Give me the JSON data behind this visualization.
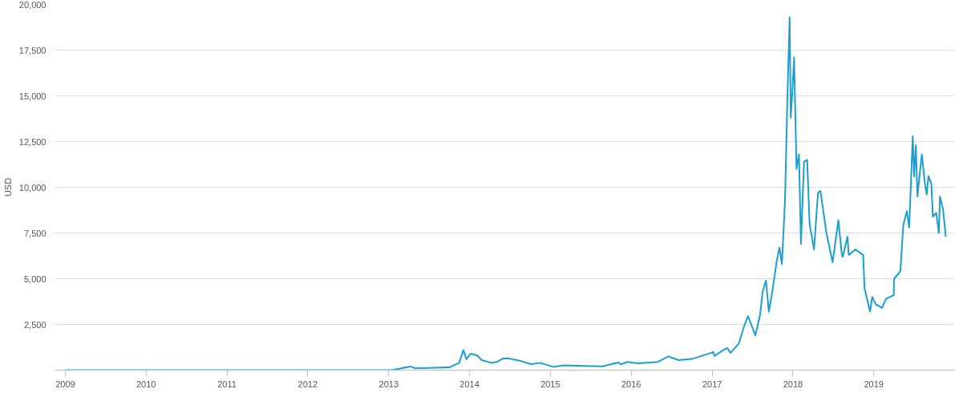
{
  "chart_data": {
    "type": "line",
    "ylabel": "USD",
    "grid": "y",
    "marker": "none",
    "line_style": "solid",
    "xlim": [
      "2008-11-15",
      "2020-01-01"
    ],
    "xticks": [
      "2009",
      "2010",
      "2011",
      "2012",
      "2013",
      "2014",
      "2015",
      "2016",
      "2017",
      "2018",
      "2019"
    ],
    "ylim": [
      0,
      20000
    ],
    "yticks": [
      {
        "value": 0,
        "label": null
      },
      {
        "value": 2500,
        "label": "2,500"
      },
      {
        "value": 5000,
        "label": "5,000"
      },
      {
        "value": 7500,
        "label": "7,500"
      },
      {
        "value": 10000,
        "label": "10,000"
      },
      {
        "value": 12500,
        "label": "12,500"
      },
      {
        "value": 15000,
        "label": "15,000"
      },
      {
        "value": 17500,
        "label": "17,500"
      },
      {
        "value": 20000,
        "label": "20,000"
      }
    ],
    "series": [
      {
        "color": "#1a9fd0",
        "x": [
          "2009-01-03",
          "2010-07-15",
          "2011-06-08",
          "2012-01-15",
          "2013-01-15",
          "2013-04-10",
          "2013-05-01",
          "2013-10-01",
          "2013-11-15",
          "2013-12-04",
          "2013-12-18",
          "2014-01-05",
          "2014-02-05",
          "2014-02-25",
          "2014-04-10",
          "2014-05-05",
          "2014-06-03",
          "2014-07-05",
          "2014-08-20",
          "2014-10-05",
          "2014-11-15",
          "2015-01-14",
          "2015-03-01",
          "2015-06-01",
          "2015-08-25",
          "2015-11-04",
          "2015-11-15",
          "2015-12-15",
          "2016-02-01",
          "2016-05-01",
          "2016-06-17",
          "2016-08-02",
          "2016-10-01",
          "2016-12-31",
          "2017-01-05",
          "2017-01-12",
          "2017-02-20",
          "2017-03-10",
          "2017-03-25",
          "2017-05-01",
          "2017-05-25",
          "2017-06-12",
          "2017-07-15",
          "2017-08-05",
          "2017-08-17",
          "2017-09-01",
          "2017-09-14",
          "2017-10-01",
          "2017-10-20",
          "2017-11-01",
          "2017-11-12",
          "2017-11-26",
          "2017-12-07",
          "2017-12-17",
          "2017-12-22",
          "2017-12-28",
          "2018-01-06",
          "2018-01-17",
          "2018-01-28",
          "2018-02-06",
          "2018-02-20",
          "2018-03-06",
          "2018-03-17",
          "2018-04-06",
          "2018-04-24",
          "2018-05-05",
          "2018-06-01",
          "2018-06-29",
          "2018-07-25",
          "2018-08-10",
          "2018-08-14",
          "2018-09-04",
          "2018-09-10",
          "2018-10-10",
          "2018-11-14",
          "2018-11-20",
          "2018-12-15",
          "2018-12-25",
          "2019-01-10",
          "2019-02-07",
          "2019-02-25",
          "2019-04-01",
          "2019-04-03",
          "2019-05-01",
          "2019-05-14",
          "2019-05-30",
          "2019-06-10",
          "2019-06-26",
          "2019-07-02",
          "2019-07-10",
          "2019-07-17",
          "2019-08-06",
          "2019-08-20",
          "2019-08-28",
          "2019-09-05",
          "2019-09-18",
          "2019-09-25",
          "2019-10-10",
          "2019-10-22",
          "2019-10-27",
          "2019-11-10",
          "2019-11-22"
        ],
        "values": [
          0,
          0,
          0,
          0,
          0,
          200,
          100,
          150,
          400,
          1100,
          600,
          900,
          800,
          550,
          400,
          450,
          650,
          620,
          500,
          330,
          400,
          180,
          260,
          225,
          210,
          420,
          320,
          450,
          375,
          450,
          750,
          550,
          610,
          960,
          1000,
          780,
          1100,
          1200,
          950,
          1450,
          2400,
          2950,
          1900,
          3000,
          4300,
          4900,
          3200,
          4400,
          6000,
          6700,
          5800,
          9300,
          15000,
          19300,
          13800,
          15000,
          17100,
          11000,
          11800,
          6900,
          11400,
          11500,
          8000,
          6600,
          9700,
          9800,
          7500,
          5900,
          8200,
          6300,
          6200,
          7300,
          6300,
          6600,
          6300,
          4500,
          3200,
          4000,
          3600,
          3400,
          3900,
          4100,
          5000,
          5400,
          7900,
          8700,
          7800,
          12800,
          10600,
          12300,
          9500,
          11800,
          10200,
          9600,
          10600,
          10200,
          8400,
          8600,
          7500,
          9500,
          8800,
          7300
        ]
      }
    ]
  }
}
